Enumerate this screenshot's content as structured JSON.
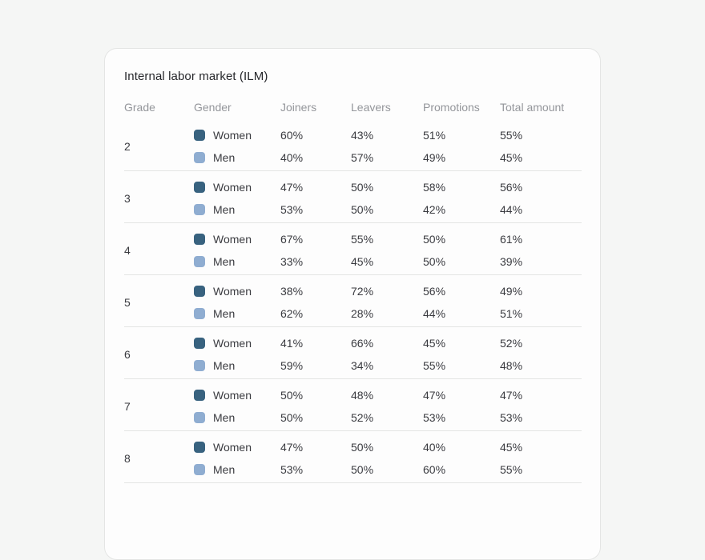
{
  "page": {
    "background": "#f5f6f5"
  },
  "card": {
    "title": "Internal labor market (ILM)",
    "background": "#fdfdfd",
    "border_color": "#e4e5e4"
  },
  "legend_colors": {
    "women": "#38627f",
    "men": "#8fadd1"
  },
  "chart_data": {
    "type": "table",
    "title": "Internal labor market (ILM)",
    "columns": [
      "Grade",
      "Gender",
      "Joiners",
      "Leavers",
      "Promotions",
      "Total amount"
    ],
    "rows": [
      [
        "2",
        "Women",
        "60%",
        "43%",
        "51%",
        "55%"
      ],
      [
        "2",
        "Men",
        "40%",
        "57%",
        "49%",
        "45%"
      ],
      [
        "3",
        "Women",
        "47%",
        "50%",
        "58%",
        "56%"
      ],
      [
        "3",
        "Men",
        "53%",
        "50%",
        "42%",
        "44%"
      ],
      [
        "4",
        "Women",
        "67%",
        "55%",
        "50%",
        "61%"
      ],
      [
        "4",
        "Men",
        "33%",
        "45%",
        "50%",
        "39%"
      ],
      [
        "5",
        "Women",
        "38%",
        "72%",
        "56%",
        "49%"
      ],
      [
        "5",
        "Men",
        "62%",
        "28%",
        "44%",
        "51%"
      ],
      [
        "6",
        "Women",
        "41%",
        "66%",
        "45%",
        "52%"
      ],
      [
        "6",
        "Men",
        "59%",
        "34%",
        "55%",
        "48%"
      ],
      [
        "7",
        "Women",
        "50%",
        "48%",
        "47%",
        "47%"
      ],
      [
        "7",
        "Men",
        "50%",
        "52%",
        "53%",
        "53%"
      ],
      [
        "8",
        "Women",
        "47%",
        "50%",
        "40%",
        "45%"
      ],
      [
        "8",
        "Men",
        "53%",
        "50%",
        "60%",
        "55%"
      ]
    ]
  }
}
